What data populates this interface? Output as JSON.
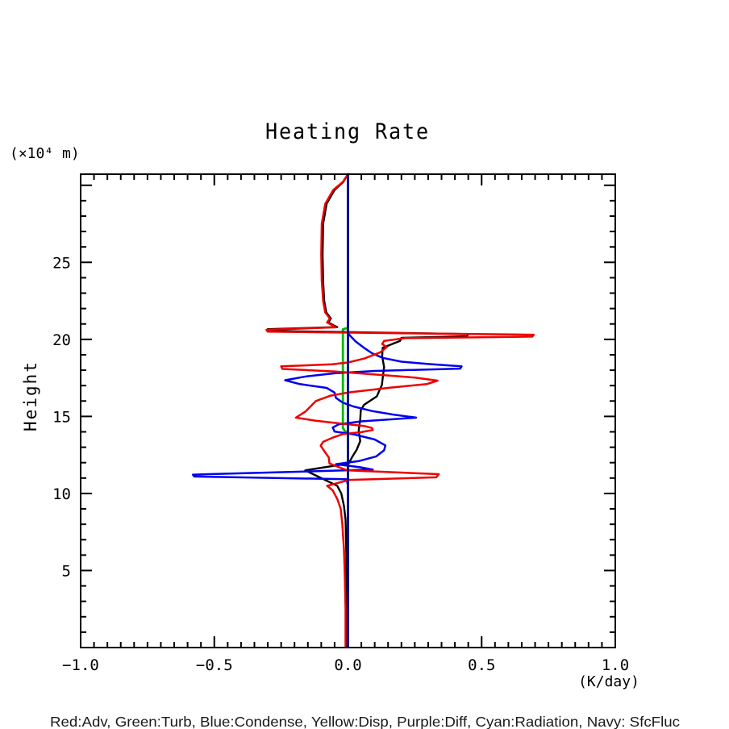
{
  "chart_data": {
    "type": "line",
    "title": "Heating Rate",
    "y_unit_label": "(×10⁴ m)",
    "x_unit_label": "(K/day)",
    "ylabel": "Height",
    "xlim": [
      -1.0,
      1.0
    ],
    "ylim": [
      0,
      30.72
    ],
    "grid": false,
    "x_major_ticks": [
      -1.0,
      -0.5,
      0.0,
      0.5,
      1.0
    ],
    "x_tick_labels": [
      "−1.0",
      "−0.5",
      "0.0",
      "0.5",
      "1.0"
    ],
    "x_minor_step": 0.05,
    "y_major_ticks": [
      5,
      10,
      15,
      20,
      25
    ],
    "y_tick_labels": [
      "5",
      "10",
      "15",
      "20",
      "25"
    ],
    "y_minor_step": 1,
    "legend_note": "Red:Adv, Green:Turb, Blue:Condense, Yellow:Disp, Purple:Diff, Cyan:Radiation, Navy: SfcFluc",
    "colors": {
      "red": "#ee0000",
      "green": "#00bb00",
      "blue": "#0000ee",
      "yellow": "#cccc00",
      "purple": "#880088",
      "cyan": "#00cccc",
      "navy": "#000099",
      "black": "#000000"
    },
    "series": [
      {
        "name": "Disp",
        "color": "#cccc00",
        "width": 2.5,
        "points": [
          [
            0,
            30.72
          ],
          [
            0,
            0.1
          ]
        ]
      },
      {
        "name": "Diff",
        "color": "#880088",
        "width": 2.5,
        "points": [
          [
            0,
            30.72
          ],
          [
            0,
            0.1
          ]
        ]
      },
      {
        "name": "Radiation",
        "color": "#00cccc",
        "width": 2.5,
        "points": [
          [
            0,
            30.72
          ],
          [
            0,
            0.1
          ]
        ]
      },
      {
        "name": "Turb",
        "color": "#00bb00",
        "width": 2.8,
        "points": [
          [
            0,
            30.72
          ],
          [
            0,
            20.75
          ],
          [
            -0.019,
            20.65
          ],
          [
            -0.019,
            14.25
          ],
          [
            -0.012,
            14.05
          ],
          [
            0,
            13.95
          ],
          [
            0,
            0.1
          ]
        ]
      },
      {
        "name": "black-curve",
        "color": "#000000",
        "width": 2.4,
        "points": [
          [
            0,
            30.72
          ],
          [
            -0.018,
            30.2
          ],
          [
            -0.05,
            29.7
          ],
          [
            -0.08,
            28.8
          ],
          [
            -0.093,
            27.5
          ],
          [
            -0.095,
            25.5
          ],
          [
            -0.093,
            23.8
          ],
          [
            -0.089,
            22.5
          ],
          [
            -0.081,
            21.75
          ],
          [
            -0.064,
            21.35
          ],
          [
            -0.073,
            21.1
          ],
          [
            -0.053,
            20.9
          ],
          [
            -0.04,
            20.8
          ],
          [
            -0.3,
            20.66
          ],
          [
            -0.295,
            20.55
          ],
          [
            -0.02,
            20.48
          ],
          [
            0.45,
            20.34
          ],
          [
            0.445,
            20.2
          ],
          [
            0.2,
            20.1
          ],
          [
            0.195,
            19.9
          ],
          [
            0.13,
            19.45
          ],
          [
            0.128,
            18.9
          ],
          [
            0.135,
            18.2
          ],
          [
            0.13,
            17.5
          ],
          [
            0.127,
            17.05
          ],
          [
            0.108,
            16.3
          ],
          [
            0.06,
            15.75
          ],
          [
            0.048,
            15.4
          ],
          [
            0.046,
            14.8
          ],
          [
            0.04,
            14.1
          ],
          [
            0.046,
            13.4
          ],
          [
            0.033,
            12.85
          ],
          [
            0.015,
            12.35
          ],
          [
            0.003,
            11.95
          ],
          [
            -0.16,
            11.5
          ],
          [
            -0.04,
            10.5
          ],
          [
            -0.025,
            10.0
          ],
          [
            -0.015,
            9.2
          ],
          [
            -0.009,
            8.3
          ],
          [
            -0.006,
            6.0
          ],
          [
            -0.006,
            0.1
          ]
        ]
      },
      {
        "name": "Condense",
        "color": "#0000ee",
        "width": 2.5,
        "points": [
          [
            0,
            30.72
          ],
          [
            0,
            20.4
          ],
          [
            0.01,
            20.2
          ],
          [
            0.03,
            19.85
          ],
          [
            0.06,
            19.45
          ],
          [
            0.09,
            19.1
          ],
          [
            0.13,
            18.8
          ],
          [
            0.2,
            18.55
          ],
          [
            0.3,
            18.4
          ],
          [
            0.425,
            18.25
          ],
          [
            0.42,
            18.1
          ],
          [
            0.1,
            17.95
          ],
          [
            -0.05,
            17.8
          ],
          [
            -0.155,
            17.6
          ],
          [
            -0.235,
            17.35
          ],
          [
            -0.18,
            17.1
          ],
          [
            -0.08,
            16.85
          ],
          [
            -0.05,
            16.55
          ],
          [
            -0.045,
            16.2
          ],
          [
            -0.02,
            15.9
          ],
          [
            0.02,
            15.65
          ],
          [
            0.09,
            15.35
          ],
          [
            0.17,
            15.12
          ],
          [
            0.255,
            14.92
          ],
          [
            0.05,
            14.68
          ],
          [
            -0.035,
            14.48
          ],
          [
            -0.057,
            14.28
          ],
          [
            -0.05,
            14.02
          ],
          [
            0.025,
            13.82
          ],
          [
            0.1,
            13.5
          ],
          [
            0.14,
            13.12
          ],
          [
            0.135,
            12.8
          ],
          [
            0.105,
            12.4
          ],
          [
            0.04,
            12.1
          ],
          [
            -0.045,
            11.9
          ],
          [
            0.045,
            11.7
          ],
          [
            0.093,
            11.55
          ],
          [
            -0.58,
            11.22
          ],
          [
            -0.575,
            11.1
          ],
          [
            -0.005,
            10.92
          ],
          [
            0,
            10.5
          ],
          [
            0,
            0.1
          ]
        ]
      },
      {
        "name": "Adv",
        "color": "#ee0000",
        "width": 2.5,
        "points": [
          [
            0,
            30.72
          ],
          [
            -0.02,
            30.2
          ],
          [
            -0.055,
            29.7
          ],
          [
            -0.085,
            28.8
          ],
          [
            -0.098,
            27.5
          ],
          [
            -0.1,
            25.5
          ],
          [
            -0.098,
            23.8
          ],
          [
            -0.093,
            22.5
          ],
          [
            -0.085,
            21.75
          ],
          [
            -0.068,
            21.35
          ],
          [
            -0.078,
            21.1
          ],
          [
            -0.058,
            20.9
          ],
          [
            -0.045,
            20.78
          ],
          [
            -0.305,
            20.62
          ],
          [
            -0.3,
            20.5
          ],
          [
            -0.02,
            20.44
          ],
          [
            0.695,
            20.3
          ],
          [
            0.69,
            20.18
          ],
          [
            0.215,
            20.08
          ],
          [
            0.135,
            19.9
          ],
          [
            0.128,
            19.7
          ],
          [
            0.145,
            19.5
          ],
          [
            0.12,
            19.15
          ],
          [
            0.06,
            18.75
          ],
          [
            0,
            18.5
          ],
          [
            -0.06,
            18.38
          ],
          [
            -0.25,
            18.25
          ],
          [
            -0.245,
            18.08
          ],
          [
            -0.05,
            17.92
          ],
          [
            0.1,
            17.72
          ],
          [
            0.25,
            17.52
          ],
          [
            0.335,
            17.32
          ],
          [
            0.295,
            17.1
          ],
          [
            0.15,
            16.85
          ],
          [
            0,
            16.55
          ],
          [
            -0.065,
            16.35
          ],
          [
            -0.12,
            16.0
          ],
          [
            -0.14,
            15.65
          ],
          [
            -0.16,
            15.3
          ],
          [
            -0.195,
            14.92
          ],
          [
            -0.12,
            14.72
          ],
          [
            -0.033,
            14.55
          ],
          [
            0.06,
            14.38
          ],
          [
            0.09,
            14.25
          ],
          [
            0.093,
            14.12
          ],
          [
            0.05,
            13.98
          ],
          [
            -0.02,
            13.85
          ],
          [
            -0.06,
            13.6
          ],
          [
            -0.093,
            13.35
          ],
          [
            -0.102,
            13.1
          ],
          [
            -0.087,
            12.7
          ],
          [
            -0.072,
            12.35
          ],
          [
            -0.069,
            11.95
          ],
          [
            -0.048,
            11.8
          ],
          [
            -0.003,
            11.5
          ],
          [
            0.34,
            11.25
          ],
          [
            0.33,
            11.05
          ],
          [
            0.006,
            10.88
          ],
          [
            -0.078,
            10.5
          ],
          [
            -0.057,
            10.2
          ],
          [
            -0.039,
            9.6
          ],
          [
            -0.027,
            9.0
          ],
          [
            -0.021,
            8.0
          ],
          [
            -0.015,
            6.4
          ],
          [
            -0.012,
            4.9
          ],
          [
            -0.009,
            2.5
          ],
          [
            -0.009,
            0.1
          ]
        ]
      },
      {
        "name": "SfcFluc",
        "color": "#000099",
        "width": 2.6,
        "points": [
          [
            0,
            30.72
          ],
          [
            0,
            0.1
          ]
        ]
      }
    ]
  }
}
